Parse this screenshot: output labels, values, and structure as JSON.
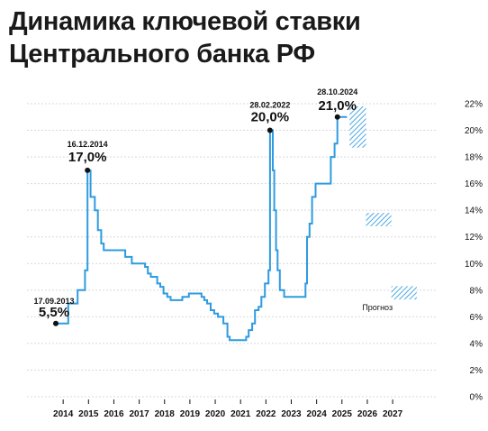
{
  "title_lines": [
    "Динамика ключевой ставки",
    "Центрального банка РФ"
  ],
  "forecast_label": "Прогноз",
  "chart_data": {
    "type": "line",
    "title": "Динамика ключевой ставки Центрального банка РФ",
    "ylim": [
      0,
      22
    ],
    "yticks": [
      "0%",
      "2%",
      "4%",
      "6%",
      "8%",
      "10%",
      "12%",
      "14%",
      "16%",
      "18%",
      "20%",
      "22%"
    ],
    "xticks": [
      "2014",
      "2015",
      "2016",
      "2017",
      "2018",
      "2019",
      "2020",
      "2021",
      "2022",
      "2023",
      "2024",
      "2025",
      "2026",
      "2027"
    ],
    "grid": true,
    "color": "#2e9be0",
    "series": [
      {
        "values": [
          [
            2013.71,
            5.5
          ],
          [
            2014.2,
            5.5
          ],
          [
            2014.2,
            7.0
          ],
          [
            2014.57,
            7.0
          ],
          [
            2014.57,
            8.0
          ],
          [
            2014.86,
            8.0
          ],
          [
            2014.86,
            9.5
          ],
          [
            2014.96,
            9.5
          ],
          [
            2014.96,
            17.0
          ],
          [
            2015.08,
            17.0
          ],
          [
            2015.08,
            15.0
          ],
          [
            2015.25,
            15.0
          ],
          [
            2015.25,
            14.0
          ],
          [
            2015.37,
            14.0
          ],
          [
            2015.37,
            12.5
          ],
          [
            2015.5,
            12.5
          ],
          [
            2015.5,
            11.5
          ],
          [
            2015.6,
            11.5
          ],
          [
            2015.6,
            11.0
          ],
          [
            2016.45,
            11.0
          ],
          [
            2016.45,
            10.5
          ],
          [
            2016.71,
            10.5
          ],
          [
            2016.71,
            10.0
          ],
          [
            2017.23,
            10.0
          ],
          [
            2017.23,
            9.75
          ],
          [
            2017.34,
            9.75
          ],
          [
            2017.34,
            9.25
          ],
          [
            2017.46,
            9.25
          ],
          [
            2017.46,
            9.0
          ],
          [
            2017.71,
            9.0
          ],
          [
            2017.71,
            8.5
          ],
          [
            2017.83,
            8.5
          ],
          [
            2017.83,
            8.25
          ],
          [
            2017.96,
            8.25
          ],
          [
            2017.96,
            7.75
          ],
          [
            2018.11,
            7.75
          ],
          [
            2018.11,
            7.5
          ],
          [
            2018.24,
            7.5
          ],
          [
            2018.24,
            7.25
          ],
          [
            2018.7,
            7.25
          ],
          [
            2018.7,
            7.5
          ],
          [
            2018.96,
            7.5
          ],
          [
            2018.96,
            7.75
          ],
          [
            2019.46,
            7.75
          ],
          [
            2019.46,
            7.5
          ],
          [
            2019.57,
            7.5
          ],
          [
            2019.57,
            7.25
          ],
          [
            2019.68,
            7.25
          ],
          [
            2019.68,
            7.0
          ],
          [
            2019.82,
            7.0
          ],
          [
            2019.82,
            6.5
          ],
          [
            2019.96,
            6.5
          ],
          [
            2019.96,
            6.25
          ],
          [
            2020.11,
            6.25
          ],
          [
            2020.11,
            6.0
          ],
          [
            2020.32,
            6.0
          ],
          [
            2020.32,
            5.5
          ],
          [
            2020.48,
            5.5
          ],
          [
            2020.48,
            4.5
          ],
          [
            2020.57,
            4.5
          ],
          [
            2020.57,
            4.25
          ],
          [
            2021.22,
            4.25
          ],
          [
            2021.22,
            4.5
          ],
          [
            2021.32,
            4.5
          ],
          [
            2021.32,
            5.0
          ],
          [
            2021.46,
            5.0
          ],
          [
            2021.46,
            5.5
          ],
          [
            2021.57,
            5.5
          ],
          [
            2021.57,
            6.5
          ],
          [
            2021.71,
            6.5
          ],
          [
            2021.71,
            6.75
          ],
          [
            2021.82,
            6.75
          ],
          [
            2021.82,
            7.5
          ],
          [
            2021.96,
            7.5
          ],
          [
            2021.96,
            8.5
          ],
          [
            2022.1,
            8.5
          ],
          [
            2022.1,
            9.5
          ],
          [
            2022.16,
            9.5
          ],
          [
            2022.16,
            20.0
          ],
          [
            2022.27,
            20.0
          ],
          [
            2022.27,
            17.0
          ],
          [
            2022.33,
            17.0
          ],
          [
            2022.33,
            14.0
          ],
          [
            2022.4,
            14.0
          ],
          [
            2022.4,
            11.0
          ],
          [
            2022.46,
            11.0
          ],
          [
            2022.46,
            9.5
          ],
          [
            2022.55,
            9.5
          ],
          [
            2022.55,
            8.0
          ],
          [
            2022.72,
            8.0
          ],
          [
            2022.72,
            7.5
          ],
          [
            2023.56,
            7.5
          ],
          [
            2023.56,
            8.5
          ],
          [
            2023.62,
            8.5
          ],
          [
            2023.62,
            12.0
          ],
          [
            2023.72,
            12.0
          ],
          [
            2023.72,
            13.0
          ],
          [
            2023.82,
            13.0
          ],
          [
            2023.82,
            15.0
          ],
          [
            2023.96,
            15.0
          ],
          [
            2023.96,
            16.0
          ],
          [
            2024.56,
            16.0
          ],
          [
            2024.56,
            18.0
          ],
          [
            2024.71,
            18.0
          ],
          [
            2024.71,
            19.0
          ],
          [
            2024.82,
            19.0
          ],
          [
            2024.82,
            21.0
          ],
          [
            2025.2,
            21.0
          ]
        ]
      }
    ],
    "forecast": [
      {
        "x": [
          2025.3,
          2025.95
        ],
        "y": [
          18.7,
          21.8
        ]
      },
      {
        "x": [
          2025.95,
          2026.95
        ],
        "y": [
          12.8,
          13.8
        ]
      },
      {
        "x": [
          2026.95,
          2027.95
        ],
        "y": [
          7.3,
          8.3
        ]
      }
    ],
    "annotations": [
      {
        "x": 2013.71,
        "y": 5.5,
        "date": "17.09.2013",
        "value": "5,5%"
      },
      {
        "x": 2014.96,
        "y": 17.0,
        "date": "16.12.2014",
        "value": "17,0%"
      },
      {
        "x": 2022.16,
        "y": 20.0,
        "date": "28.02.2022",
        "value": "20,0%"
      },
      {
        "x": 2024.82,
        "y": 21.0,
        "date": "28.10.2024",
        "value": "21,0%"
      }
    ]
  }
}
